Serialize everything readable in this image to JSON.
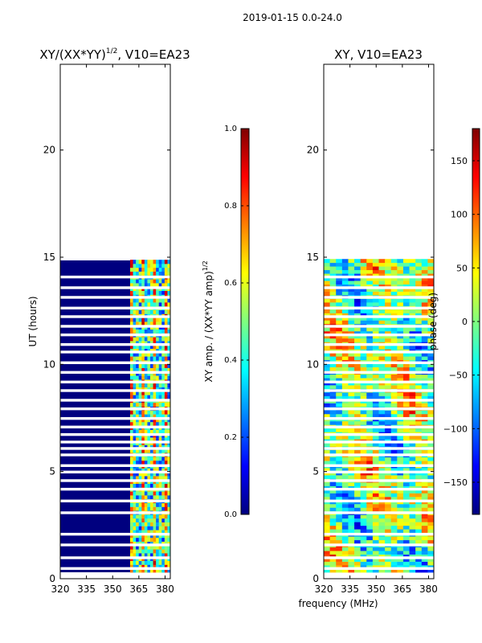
{
  "figure": {
    "suptitle": "2019-01-15 0.0-24.0",
    "xlabel": "frequency (MHz)"
  },
  "colors": {
    "jet": [
      "#00007f",
      "#0000ff",
      "#007fff",
      "#00ffff",
      "#7fff7f",
      "#ffff00",
      "#ff7f00",
      "#ff0000",
      "#7f0000"
    ],
    "flag": "#ffffff"
  },
  "chart_data": [
    {
      "type": "heatmap",
      "title_main": "XY/(XX*YY)",
      "title_sup": "1/2",
      "title_rest": ", V10=EA23",
      "ylabel": "UT (hours)",
      "xlim": [
        320,
        383
      ],
      "ylim": [
        0,
        24
      ],
      "xticks": [
        320,
        335,
        350,
        365,
        380
      ],
      "yticks": [
        0,
        5,
        10,
        15,
        20
      ],
      "data_extent_hours": [
        0.3,
        14.85
      ],
      "pattern_freq_mhz": [
        360,
        383
      ],
      "colorbar": {
        "label_main": "XY amp. / (XX*YY amp)",
        "label_sup": "1/2",
        "range": [
          0.0,
          1.0
        ],
        "ticks": [
          "0.0",
          "0.2",
          "0.4",
          "0.6",
          "0.8",
          "1.0"
        ]
      }
    },
    {
      "type": "heatmap",
      "title": "XY, V10=EA23",
      "xlim": [
        320,
        383
      ],
      "ylim": [
        0,
        24
      ],
      "xticks": [
        320,
        335,
        350,
        365,
        380
      ],
      "yticks": [
        0,
        5,
        10,
        15,
        20
      ],
      "data_extent_hours": [
        0.3,
        14.85
      ],
      "colorbar": {
        "label": "phase (deg)",
        "range": [
          -180,
          180
        ],
        "ticks": [
          "−150",
          "−100",
          "−50",
          "0",
          "50",
          "100",
          "150"
        ]
      }
    }
  ],
  "flagged_hours": [
    0.45,
    0.95,
    1.55,
    2.05,
    3.05,
    3.6,
    4.15,
    4.55,
    4.95,
    5.25,
    5.75,
    6.05,
    6.35,
    6.7,
    7.05,
    7.45,
    7.9,
    8.3,
    8.75,
    9.15,
    9.6,
    10.05,
    10.55,
    10.9,
    11.35,
    11.75,
    12.2,
    12.6,
    13.1,
    13.55,
    14.05
  ]
}
